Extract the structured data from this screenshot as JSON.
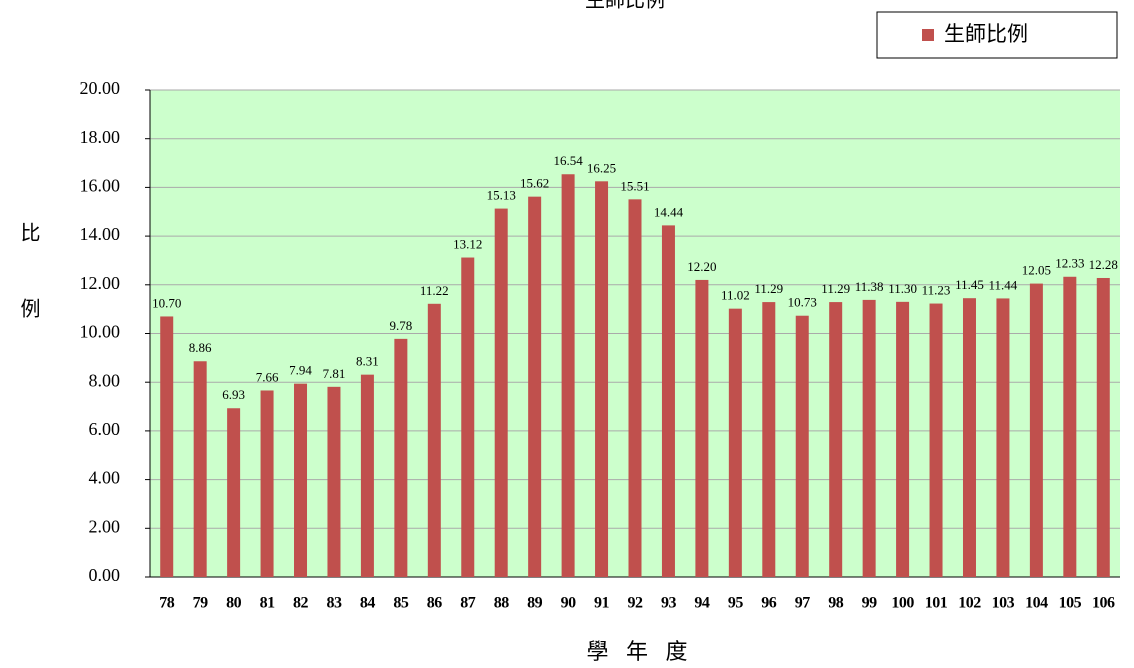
{
  "chart_data": {
    "type": "bar",
    "title": "生師比例",
    "y_label": "比例",
    "x_label": "學 年 度",
    "categories": [
      "78",
      "79",
      "80",
      "81",
      "82",
      "83",
      "84",
      "85",
      "86",
      "87",
      "88",
      "89",
      "90",
      "91",
      "92",
      "93",
      "94",
      "95",
      "96",
      "97",
      "98",
      "99",
      "100",
      "101",
      "102",
      "103",
      "104",
      "105",
      "106"
    ],
    "series": [
      {
        "name": "生師比例",
        "color": "#c0504d",
        "values": [
          10.7,
          8.86,
          6.93,
          7.66,
          7.94,
          7.81,
          8.31,
          9.78,
          11.22,
          13.12,
          15.13,
          15.62,
          16.54,
          16.25,
          15.51,
          14.44,
          12.2,
          11.02,
          11.29,
          10.73,
          11.29,
          11.38,
          11.3,
          11.23,
          11.45,
          11.44,
          12.05,
          12.33,
          12.28
        ],
        "value_labels": [
          "10.70",
          "8.86",
          "6.93",
          "7.66",
          "7.94",
          "7.81",
          "8.31",
          "9.78",
          "11.22",
          "13.12",
          "15.13",
          "15.62",
          "16.54",
          "16.25",
          "15.51",
          "14.44",
          "12.20",
          "11.02",
          "11.29",
          "10.73",
          "11.29",
          "11.38",
          "11.30",
          "11.23",
          "11.45",
          "11.44",
          "12.05",
          "12.33",
          "12.28"
        ]
      }
    ],
    "ylim": [
      0,
      20
    ],
    "yticks": [
      {
        "value": 0,
        "label": "0.00"
      },
      {
        "value": 2,
        "label": "2.00"
      },
      {
        "value": 4,
        "label": "4.00"
      },
      {
        "value": 6,
        "label": "6.00"
      },
      {
        "value": 8,
        "label": "8.00"
      },
      {
        "value": 10,
        "label": "10.00"
      },
      {
        "value": 12,
        "label": "12.00"
      },
      {
        "value": 14,
        "label": "14.00"
      },
      {
        "value": 16,
        "label": "16.00"
      },
      {
        "value": 18,
        "label": "18.00"
      },
      {
        "value": 20,
        "label": "20.00"
      }
    ],
    "grid": true,
    "legend": "top-right",
    "background": "#ccffcc"
  }
}
